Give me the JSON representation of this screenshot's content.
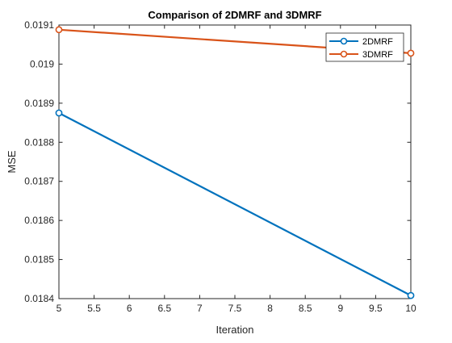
{
  "chart_data": {
    "type": "line",
    "title": "Comparison of 2DMRF and 3DMRF",
    "xlabel": "Iteration",
    "ylabel": "MSE",
    "xlim": [
      5,
      10
    ],
    "ylim": [
      0.0184,
      0.0191
    ],
    "xticks": [
      5,
      5.5,
      6,
      6.5,
      7,
      7.5,
      8,
      8.5,
      9,
      9.5,
      10
    ],
    "xtick_labels": [
      "5",
      "5.5",
      "6",
      "6.5",
      "7",
      "7.5",
      "8",
      "8.5",
      "9",
      "9.5",
      "10"
    ],
    "yticks": [
      0.0184,
      0.0185,
      0.0186,
      0.0187,
      0.0188,
      0.0189,
      0.019,
      0.0191
    ],
    "ytick_labels": [
      "0.0184",
      "0.0185",
      "0.0186",
      "0.0187",
      "0.0188",
      "0.0189",
      "0.019",
      "0.0191"
    ],
    "grid": false,
    "legend_position": "top-right",
    "series": [
      {
        "name": "2DMRF",
        "color": "#0072BD",
        "marker": "circle",
        "x": [
          5,
          10
        ],
        "y": [
          0.018875,
          0.018408
        ]
      },
      {
        "name": "3DMRF",
        "color": "#D95319",
        "marker": "circle",
        "x": [
          5,
          10
        ],
        "y": [
          0.019088,
          0.019028
        ]
      }
    ]
  }
}
